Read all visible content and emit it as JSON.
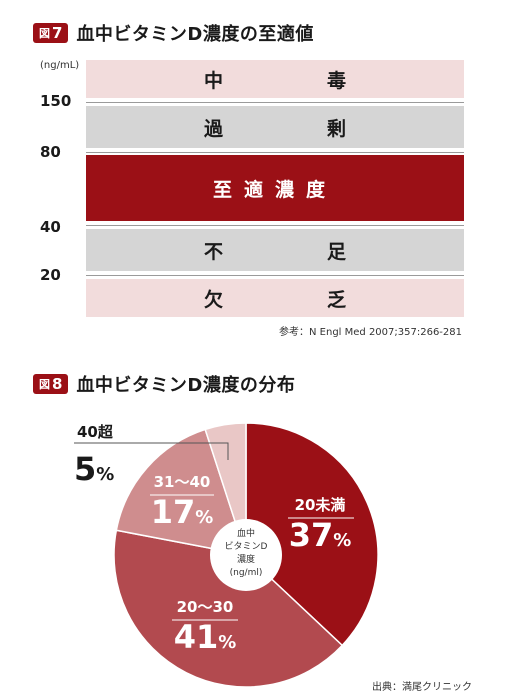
{
  "figure7": {
    "badge_prefix": "図",
    "badge_num": "7",
    "title": "血中ビタミンD濃度の至適値",
    "unit": "(ng/mL)",
    "source": "参考：N Engl Med 2007;357:266-281",
    "ticks": [
      "150",
      "80",
      "40",
      "20"
    ],
    "bands": [
      {
        "c1": "中",
        "c2": "毒",
        "color": "#f2dcdc"
      },
      {
        "c1": "過",
        "c2": "剰",
        "color": "#d5d5d5"
      },
      {
        "label": "至適濃度",
        "color": "#9b1016"
      },
      {
        "c1": "不",
        "c2": "足",
        "color": "#d5d5d5"
      },
      {
        "c1": "欠",
        "c2": "乏",
        "color": "#f2dcdc"
      }
    ]
  },
  "figure8": {
    "badge_prefix": "図",
    "badge_num": "8",
    "title": "血中ビタミンD濃度の分布",
    "source": "出典：満尾クリニック",
    "center_lines": [
      "血中",
      "ビタミンD",
      "濃度",
      "(ng/ml)"
    ]
  },
  "chart_data": {
    "type": "pie",
    "categories": [
      "20未満",
      "20〜30",
      "31〜40",
      "40超"
    ],
    "values": [
      37,
      41,
      17,
      5
    ],
    "value_labels": [
      "37",
      "41",
      "17",
      "5"
    ],
    "unit_suffix": "%",
    "colors": [
      "#9b1016",
      "#b24a4f",
      "#cf8d8e",
      "#e9c7c6"
    ]
  }
}
